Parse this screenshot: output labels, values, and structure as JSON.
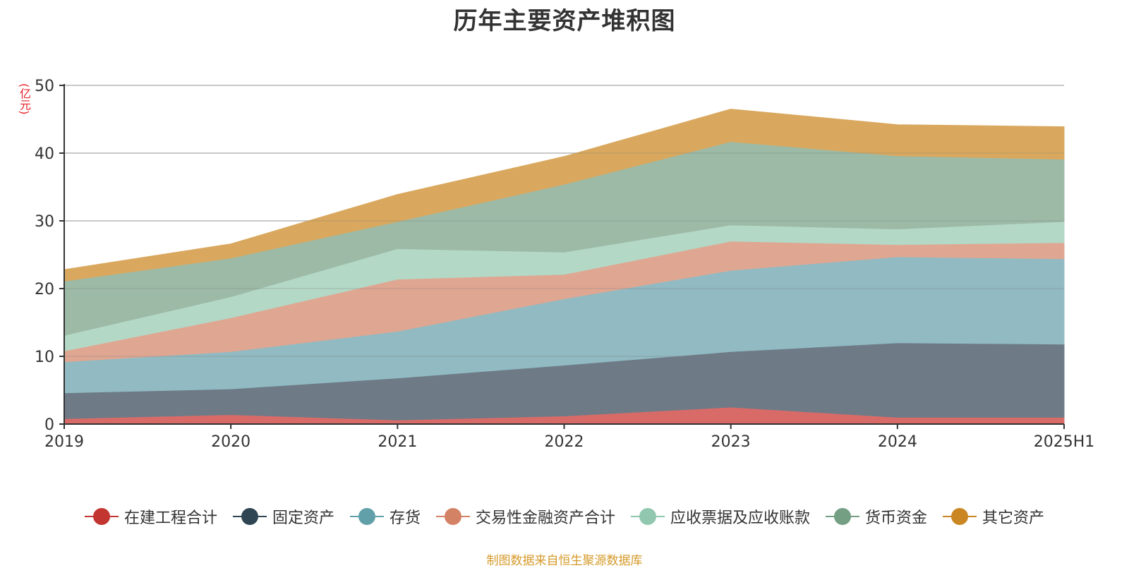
{
  "chart_data": {
    "type": "area",
    "stacked": true,
    "title": "历年主要资产堆积图",
    "unit_label": "(亿元)",
    "xlabel": "",
    "ylabel": "",
    "categories": [
      "2019",
      "2020",
      "2021",
      "2022",
      "2023",
      "2024",
      "2025H1"
    ],
    "ylim": [
      0,
      50
    ],
    "yticks": [
      "0",
      "10",
      "20",
      "30",
      "40",
      "50"
    ],
    "grid": true,
    "legend_position": "bottom",
    "series": [
      {
        "name": "在建工程合计",
        "color": "#c23531",
        "fill": "#d86b68",
        "values": [
          0.8,
          1.4,
          0.6,
          1.2,
          2.5,
          1.0,
          1.0
        ]
      },
      {
        "name": "固定资产",
        "color": "#2f4554",
        "fill": "#6e7b87",
        "values": [
          3.8,
          3.8,
          6.2,
          7.5,
          8.2,
          11.0,
          10.8
        ]
      },
      {
        "name": "存货",
        "color": "#61a0a8",
        "fill": "#91bac2",
        "values": [
          4.6,
          5.5,
          6.9,
          9.8,
          12.0,
          12.7,
          12.6
        ]
      },
      {
        "name": "交易性金融资产合计",
        "color": "#d48265",
        "fill": "#dfa792",
        "values": [
          1.6,
          5.0,
          7.7,
          3.6,
          4.3,
          1.8,
          2.4
        ]
      },
      {
        "name": "应收票据及应收账款",
        "color": "#91c7ae",
        "fill": "#b3d8c6",
        "values": [
          2.3,
          3.1,
          4.5,
          3.3,
          2.4,
          2.3,
          3.1
        ]
      },
      {
        "name": "货币资金",
        "color": "#749f83",
        "fill": "#9dbaa6",
        "values": [
          8.0,
          5.7,
          4.0,
          10.0,
          12.3,
          10.8,
          9.2
        ]
      },
      {
        "name": "其它资产",
        "color": "#ca8622",
        "fill": "#d9a85e",
        "values": [
          1.7,
          2.1,
          4.0,
          4.1,
          4.8,
          4.6,
          4.8
        ]
      }
    ]
  },
  "footer": {
    "source": "制图数据来自恒生聚源数据库"
  }
}
